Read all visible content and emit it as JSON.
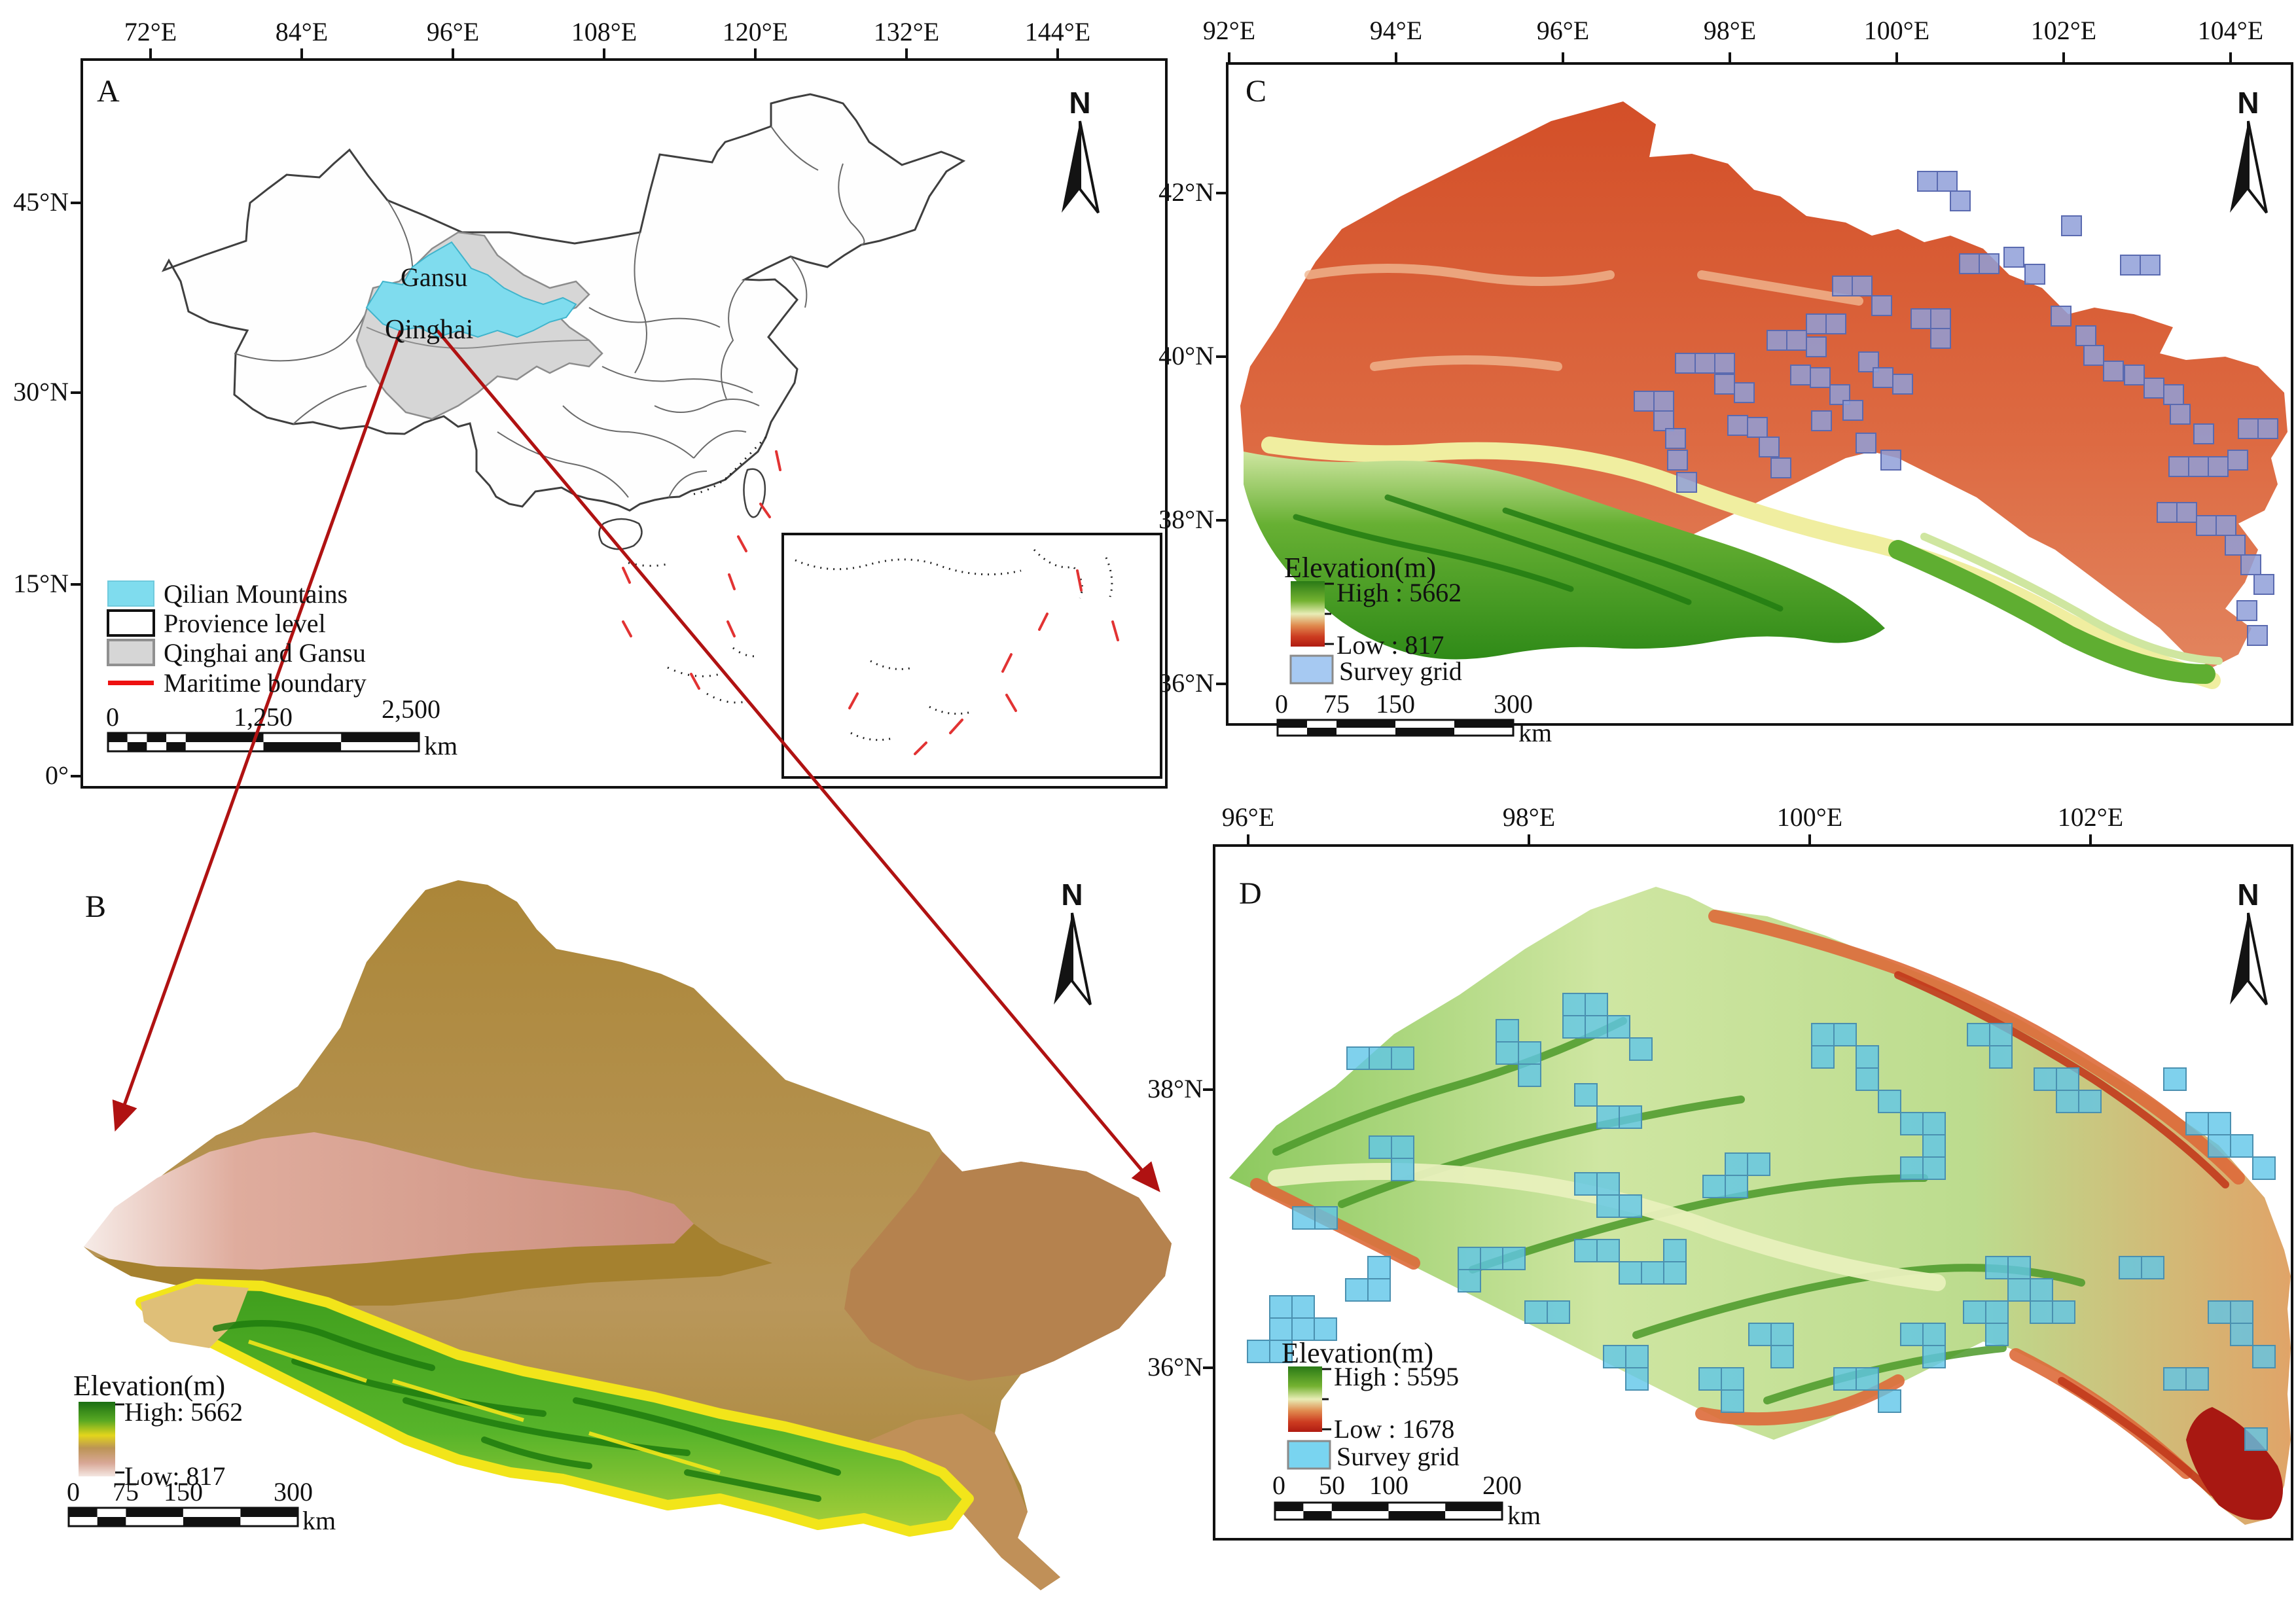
{
  "panels": {
    "a": {
      "letter": "A",
      "x_ticks": [
        "72°E",
        "84°E",
        "96°E",
        "108°E",
        "120°E",
        "132°E",
        "144°E"
      ],
      "y_ticks": [
        "45°N",
        "30°N",
        "15°N",
        "0°"
      ],
      "north_label": "N",
      "map_labels": {
        "gansu": "Gansu",
        "qinghai": "Qinghai"
      },
      "legend": {
        "items": [
          {
            "label": "Qilian Mountains",
            "swatch": "#7fdcee"
          },
          {
            "label": "Provience level",
            "swatch": "#ffffff"
          },
          {
            "label": "Qinghai and  Gansu",
            "swatch": "#d6d6d6"
          },
          {
            "label": "Maritime boundary",
            "swatch": "#ee1111"
          }
        ]
      },
      "scalebar": {
        "ticks": [
          "0",
          "1,250",
          "2,500"
        ],
        "unit": "km"
      }
    },
    "b": {
      "letter": "B",
      "north_label": "N",
      "legend": {
        "title": "Elevation(m)",
        "high": "High: 5662",
        "low": "Low: 817"
      },
      "scalebar": {
        "ticks": [
          "0",
          "75",
          "150",
          "300"
        ],
        "unit": "km"
      }
    },
    "c": {
      "letter": "C",
      "x_ticks": [
        "92°E",
        "94°E",
        "96°E",
        "98°E",
        "100°E",
        "102°E",
        "104°E"
      ],
      "y_ticks": [
        "42°N",
        "40°N",
        "38°N",
        "36°N"
      ],
      "north_label": "N",
      "legend": {
        "title": "Elevation(m)",
        "high": "High : 5662",
        "low": "Low : 817",
        "survey": "Survey grid",
        "survey_swatch": "#a6c9f2"
      },
      "scalebar": {
        "ticks": [
          "0",
          "75",
          "150",
          "300"
        ],
        "unit": "km"
      },
      "survey_style": {
        "size": 30,
        "fill": "#8f9fd8",
        "stroke": "#5a6ab0",
        "opacity": 0.85
      },
      "survey_squares": [
        [
          2497,
          598
        ],
        [
          2527,
          598
        ],
        [
          2527,
          628
        ],
        [
          2560,
          540
        ],
        [
          2590,
          540
        ],
        [
          2620,
          540
        ],
        [
          2620,
          572
        ],
        [
          2650,
          585
        ],
        [
          2545,
          655
        ],
        [
          2548,
          688
        ],
        [
          2562,
          722
        ],
        [
          2700,
          505
        ],
        [
          2730,
          505
        ],
        [
          2760,
          515
        ],
        [
          2640,
          635
        ],
        [
          2670,
          638
        ],
        [
          2688,
          668
        ],
        [
          2706,
          700
        ],
        [
          2736,
          558
        ],
        [
          2766,
          562
        ],
        [
          2796,
          588
        ],
        [
          2816,
          612
        ],
        [
          2760,
          480
        ],
        [
          2790,
          480
        ],
        [
          2840,
          538
        ],
        [
          2862,
          562
        ],
        [
          2892,
          572
        ],
        [
          2768,
          628
        ],
        [
          2836,
          662
        ],
        [
          2874,
          688
        ],
        [
          2920,
          472
        ],
        [
          2950,
          472
        ],
        [
          2950,
          502
        ],
        [
          2800,
          422
        ],
        [
          2830,
          422
        ],
        [
          2860,
          452
        ],
        [
          2994,
          388
        ],
        [
          3024,
          388
        ],
        [
          3062,
          378
        ],
        [
          3094,
          404
        ],
        [
          3134,
          468
        ],
        [
          3172,
          498
        ],
        [
          3184,
          528
        ],
        [
          3214,
          552
        ],
        [
          3246,
          558
        ],
        [
          3276,
          578
        ],
        [
          3306,
          588
        ],
        [
          3316,
          618
        ],
        [
          3352,
          648
        ],
        [
          3314,
          698
        ],
        [
          3344,
          698
        ],
        [
          3374,
          698
        ],
        [
          3404,
          688
        ],
        [
          3296,
          768
        ],
        [
          3326,
          768
        ],
        [
          3356,
          788
        ],
        [
          3386,
          788
        ],
        [
          3400,
          818
        ],
        [
          3424,
          848
        ],
        [
          3444,
          878
        ],
        [
          3418,
          918
        ],
        [
          3434,
          956
        ],
        [
          2930,
          262
        ],
        [
          2960,
          262
        ],
        [
          2980,
          292
        ],
        [
          3240,
          390
        ],
        [
          3270,
          390
        ],
        [
          3420,
          640
        ],
        [
          3450,
          640
        ],
        [
          3150,
          330
        ]
      ]
    },
    "d": {
      "letter": "D",
      "x_ticks": [
        "96°E",
        "98°E",
        "100°E",
        "102°E"
      ],
      "y_ticks": [
        "38°N",
        "36°N"
      ],
      "north_label": "N",
      "legend": {
        "title": "Elevation(m)",
        "high": "High : 5595",
        "low": "Low : 1678",
        "survey": "Survey grid",
        "survey_swatch": "#79d4f0"
      },
      "scalebar": {
        "ticks": [
          "0",
          "50",
          "100",
          "200"
        ],
        "unit": "km"
      },
      "survey_style": {
        "size": 34,
        "fill": "#5fc6e8",
        "stroke": "#4a90b0",
        "opacity": 0.8
      },
      "survey_squares": [
        [
          1940,
          1980
        ],
        [
          1974,
          1980
        ],
        [
          1940,
          2014
        ],
        [
          1974,
          2014
        ],
        [
          2008,
          2014
        ],
        [
          1906,
          2048
        ],
        [
          1940,
          2048
        ],
        [
          2090,
          1920
        ],
        [
          2056,
          1954
        ],
        [
          2090,
          1954
        ],
        [
          2228,
          1906
        ],
        [
          2262,
          1906
        ],
        [
          2296,
          1906
        ],
        [
          2228,
          1940
        ],
        [
          2058,
          1600
        ],
        [
          2092,
          1600
        ],
        [
          2126,
          1600
        ],
        [
          2286,
          1558
        ],
        [
          2286,
          1592
        ],
        [
          2320,
          1592
        ],
        [
          2320,
          1626
        ],
        [
          2388,
          1518
        ],
        [
          2422,
          1518
        ],
        [
          2388,
          1552
        ],
        [
          2422,
          1552
        ],
        [
          2456,
          1552
        ],
        [
          2490,
          1586
        ],
        [
          2406,
          1656
        ],
        [
          2440,
          1690
        ],
        [
          2474,
          1690
        ],
        [
          2406,
          1792
        ],
        [
          2440,
          1792
        ],
        [
          2440,
          1826
        ],
        [
          2474,
          1826
        ],
        [
          2406,
          1894
        ],
        [
          2440,
          1894
        ],
        [
          2474,
          1928
        ],
        [
          2508,
          1928
        ],
        [
          2542,
          1894
        ],
        [
          2542,
          1928
        ],
        [
          2636,
          1762
        ],
        [
          2670,
          1762
        ],
        [
          2602,
          1796
        ],
        [
          2636,
          1796
        ],
        [
          2768,
          1564
        ],
        [
          2802,
          1564
        ],
        [
          2768,
          1598
        ],
        [
          2836,
          1598
        ],
        [
          2836,
          1632
        ],
        [
          2870,
          1666
        ],
        [
          2904,
          1700
        ],
        [
          2938,
          1700
        ],
        [
          2938,
          1734
        ],
        [
          2904,
          1768
        ],
        [
          2938,
          1768
        ],
        [
          3006,
          1564
        ],
        [
          3040,
          1564
        ],
        [
          3040,
          1598
        ],
        [
          3108,
          1632
        ],
        [
          3142,
          1632
        ],
        [
          3142,
          1666
        ],
        [
          3176,
          1666
        ],
        [
          3306,
          1632
        ],
        [
          3340,
          1700
        ],
        [
          3374,
          1700
        ],
        [
          3374,
          1734
        ],
        [
          3408,
          1734
        ],
        [
          3442,
          1768
        ],
        [
          3034,
          1920
        ],
        [
          3068,
          1920
        ],
        [
          3068,
          1954
        ],
        [
          3102,
          1954
        ],
        [
          3102,
          1988
        ],
        [
          3136,
          1988
        ],
        [
          3000,
          1988
        ],
        [
          3034,
          1988
        ],
        [
          3034,
          2022
        ],
        [
          2904,
          2022
        ],
        [
          2938,
          2022
        ],
        [
          2938,
          2056
        ],
        [
          2802,
          2090
        ],
        [
          2836,
          2090
        ],
        [
          2870,
          2124
        ],
        [
          2672,
          2022
        ],
        [
          2706,
          2022
        ],
        [
          2706,
          2056
        ],
        [
          2596,
          2090
        ],
        [
          2630,
          2090
        ],
        [
          2630,
          2124
        ],
        [
          2450,
          2056
        ],
        [
          2484,
          2056
        ],
        [
          2484,
          2090
        ],
        [
          3238,
          1920
        ],
        [
          3272,
          1920
        ],
        [
          3374,
          1988
        ],
        [
          3408,
          1988
        ],
        [
          3408,
          2022
        ],
        [
          3442,
          2056
        ],
        [
          3306,
          2090
        ],
        [
          3340,
          2090
        ],
        [
          2092,
          1736
        ],
        [
          2126,
          1736
        ],
        [
          2126,
          1770
        ],
        [
          1975,
          1844
        ],
        [
          2009,
          1844
        ],
        [
          3430,
          2182
        ],
        [
          2330,
          1988
        ],
        [
          2364,
          1988
        ]
      ]
    }
  }
}
